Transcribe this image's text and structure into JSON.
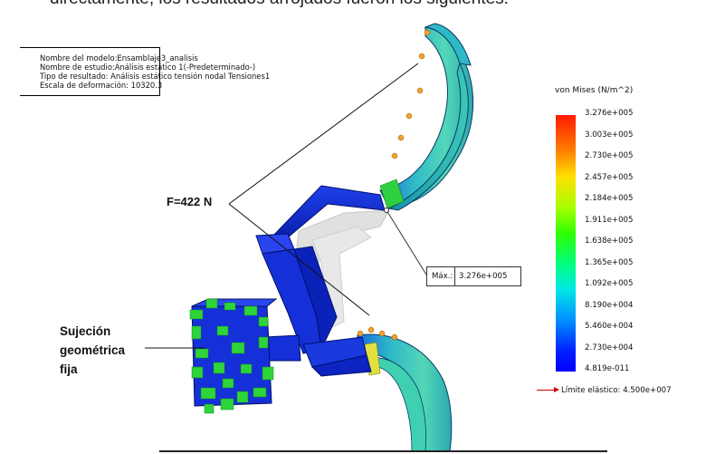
{
  "heading": "directamente, los resultados arrojados fueron los siguientes:",
  "info_box": {
    "model_name": "Nombre del modelo:Ensamblaje3_analisis",
    "study_name": "Nombre de estudio:Análisis estático 1(-Predeterminado-)",
    "result_type": "Tipo de resultado: Análisis estático tensión nodal Tensiones1",
    "deformation_scale": "Escala de deformación: 10320.3"
  },
  "annotations": {
    "force": "F=422 N",
    "fixture_line1": "Sujeción",
    "fixture_line2": "geométrica",
    "fixture_line3": "fija"
  },
  "probe": {
    "label": "Máx.:",
    "value": "3.276e+005"
  },
  "legend": {
    "title": "von Mises (N/m^2)",
    "ticks": [
      "3.276e+005",
      "3.003e+005",
      "2.730e+005",
      "2.457e+005",
      "2.184e+005",
      "1.911e+005",
      "1.638e+005",
      "1.365e+005",
      "1.092e+005",
      "8.190e+004",
      "5.460e+004",
      "2.730e+004",
      "4.819e-011"
    ],
    "yield_limit": "Límite elástico: 4.500e+007",
    "colors": {
      "max": "#ff1a00",
      "mid": "#30ff00",
      "min": "#0000ff"
    }
  }
}
